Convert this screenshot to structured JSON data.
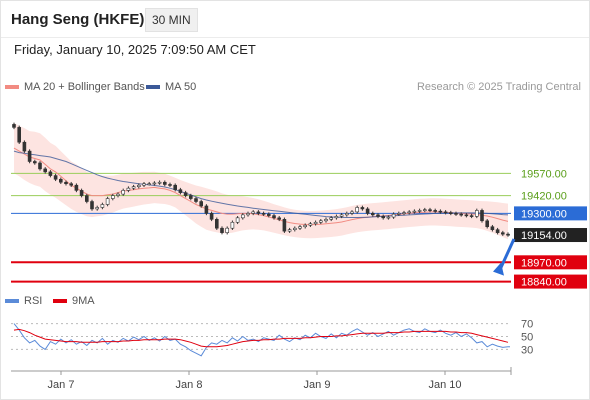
{
  "header": {
    "title": "Hang Seng (HKFE)",
    "timeframe": "30 MIN",
    "datetime": "Friday, January 10, 2025 7:09:50 AM CET"
  },
  "colors": {
    "ma20": "#f28b82",
    "ma50": "#3b5998",
    "band_fill": "#fde4e1",
    "resistance": "#9acd5a",
    "resistance_text": "#5a9e1a",
    "pivot": "#2b6cd6",
    "support": "#e0000f",
    "last": "#222222",
    "rsi": "#5b8bd8",
    "rsi_ma": "#e0000f",
    "arrow": "#2b6cd6"
  },
  "chart_data": [
    {
      "type": "line",
      "subtype": "candlestick",
      "legend": [
        {
          "name": "MA 20 + Bollinger Bands",
          "color": "#f28b82"
        },
        {
          "name": "MA 50",
          "color": "#3b5998"
        }
      ],
      "attribution": "Research © 2025 Trading Central",
      "x_ticks": [
        "Jan 7",
        "Jan 8",
        "Jan 9",
        "Jan 10"
      ],
      "ylim": [
        18790,
        19950
      ],
      "levels": [
        {
          "label": "19570.00",
          "value": 19570,
          "kind": "resistance"
        },
        {
          "label": "19420.00",
          "value": 19420,
          "kind": "resistance"
        },
        {
          "label": "19300.00",
          "value": 19300,
          "kind": "pivot"
        },
        {
          "label": "19154.00",
          "value": 19154,
          "kind": "last"
        },
        {
          "label": "18970.00",
          "value": 18970,
          "kind": "support"
        },
        {
          "label": "18840.00",
          "value": 18840,
          "kind": "support"
        }
      ],
      "close": [
        19880,
        19780,
        19720,
        19650,
        19640,
        19600,
        19580,
        19555,
        19530,
        19510,
        19500,
        19490,
        19455,
        19420,
        19380,
        19330,
        19340,
        19360,
        19400,
        19420,
        19430,
        19455,
        19470,
        19480,
        19490,
        19500,
        19500,
        19505,
        19510,
        19495,
        19490,
        19460,
        19440,
        19420,
        19400,
        19380,
        19350,
        19300,
        19260,
        19200,
        19170,
        19200,
        19240,
        19270,
        19290,
        19300,
        19310,
        19300,
        19295,
        19285,
        19270,
        19260,
        19180,
        19190,
        19200,
        19210,
        19220,
        19230,
        19240,
        19250,
        19260,
        19270,
        19280,
        19290,
        19300,
        19310,
        19340,
        19330,
        19300,
        19290,
        19280,
        19270,
        19275,
        19295,
        19300,
        19305,
        19310,
        19315,
        19320,
        19325,
        19320,
        19315,
        19310,
        19305,
        19300,
        19295,
        19290,
        19285,
        19280,
        19320,
        19250,
        19210,
        19190,
        19170,
        19160,
        19154
      ],
      "ma20": [
        19740,
        19720,
        19700,
        19680,
        19670,
        19660,
        19630,
        19600,
        19580,
        19550,
        19520,
        19490,
        19470,
        19450,
        19430,
        19420,
        19420,
        19420,
        19425,
        19430,
        19440,
        19450,
        19455,
        19460,
        19465,
        19470,
        19472,
        19475,
        19470,
        19465,
        19455,
        19440,
        19420,
        19400,
        19380,
        19360,
        19345,
        19330,
        19320,
        19310,
        19300,
        19295,
        19295,
        19298,
        19300,
        19300,
        19298,
        19292,
        19285,
        19276,
        19266,
        19256,
        19246,
        19238,
        19232,
        19228,
        19225,
        19224,
        19225,
        19227,
        19230,
        19233,
        19237,
        19242,
        19250,
        19258,
        19265,
        19270,
        19274,
        19277,
        19280,
        19283,
        19286,
        19290,
        19293,
        19297,
        19300,
        19303,
        19306,
        19308,
        19310,
        19310,
        19309,
        19307,
        19305,
        19302,
        19300,
        19298,
        19296,
        19293,
        19288,
        19282,
        19274,
        19265,
        19255,
        19246
      ],
      "ma50": [
        19720,
        19710,
        19705,
        19700,
        19695,
        19690,
        19685,
        19680,
        19670,
        19660,
        19650,
        19635,
        19620,
        19605,
        19590,
        19575,
        19560,
        19548,
        19538,
        19530,
        19522,
        19515,
        19510,
        19505,
        19500,
        19496,
        19492,
        19488,
        19484,
        19478,
        19470,
        19460,
        19448,
        19436,
        19424,
        19412,
        19400,
        19390,
        19382,
        19375,
        19368,
        19362,
        19356,
        19350,
        19345,
        19340,
        19335,
        19330,
        19326,
        19322,
        19318,
        19314,
        19310,
        19306,
        19302,
        19298,
        19294,
        19290,
        19286,
        19282,
        19278,
        19276,
        19274,
        19273,
        19272,
        19272,
        19272,
        19273,
        19274,
        19276,
        19278,
        19280,
        19282,
        19284,
        19286,
        19288,
        19290,
        19292,
        19294,
        19296,
        19298,
        19300,
        19301,
        19302,
        19303,
        19303,
        19303,
        19303,
        19303,
        19303,
        19302,
        19300,
        19298,
        19295,
        19292,
        19290
      ],
      "band_width": [
        170,
        170,
        175,
        175,
        180,
        180,
        180,
        175,
        175,
        170,
        165,
        160,
        160,
        155,
        150,
        145,
        140,
        135,
        130,
        125,
        120,
        118,
        116,
        114,
        112,
        110,
        108,
        106,
        104,
        102,
        100,
        100,
        105,
        112,
        120,
        128,
        135,
        140,
        140,
        138,
        135,
        130,
        125,
        120,
        115,
        110,
        106,
        103,
        100,
        98,
        96,
        95,
        94,
        93,
        92,
        92,
        92,
        92,
        92,
        92,
        92,
        92,
        92,
        92,
        92,
        92,
        92,
        92,
        92,
        92,
        92,
        92,
        92,
        92,
        92,
        92,
        92,
        92,
        92,
        92,
        92,
        92,
        92,
        92,
        92,
        92,
        92,
        92,
        92,
        92,
        95,
        100,
        105,
        110,
        115,
        120
      ]
    },
    {
      "type": "line",
      "legend": [
        {
          "name": "RSI",
          "color": "#5b8bd8"
        },
        {
          "name": "9MA",
          "color": "#e0000f"
        }
      ],
      "ylim": [
        15,
        85
      ],
      "y_ticks": [
        70,
        50,
        30
      ],
      "rsi": [
        70,
        60,
        48,
        40,
        44,
        35,
        30,
        42,
        38,
        46,
        40,
        45,
        38,
        42,
        36,
        44,
        40,
        47,
        38,
        44,
        41,
        47,
        43,
        49,
        45,
        50,
        44,
        48,
        43,
        50,
        44,
        46,
        38,
        34,
        28,
        24,
        20,
        33,
        40,
        38,
        44,
        40,
        48,
        43,
        50,
        44,
        46,
        42,
        48,
        46,
        44,
        52,
        46,
        42,
        48,
        45,
        52,
        48,
        55,
        50,
        47,
        54,
        48,
        55,
        52,
        58,
        62,
        57,
        52,
        56,
        50,
        54,
        58,
        52,
        56,
        60,
        62,
        58,
        56,
        62,
        58,
        56,
        60,
        55,
        52,
        56,
        50,
        54,
        48,
        40,
        42,
        34,
        38,
        35,
        33,
        34
      ],
      "rsi_ma": [
        60,
        61,
        59,
        56,
        52,
        49,
        46,
        45,
        44,
        43,
        42,
        42,
        42,
        41,
        41,
        41,
        41,
        42,
        42,
        42,
        42,
        43,
        43,
        44,
        44,
        45,
        45,
        45,
        45,
        46,
        46,
        46,
        45,
        43,
        41,
        38,
        35,
        34,
        34,
        34,
        35,
        36,
        38,
        40,
        42,
        43,
        44,
        44,
        45,
        45,
        46,
        46,
        47,
        47,
        47,
        47,
        48,
        48,
        49,
        50,
        50,
        50,
        51,
        51,
        52,
        53,
        54,
        55,
        55,
        55,
        55,
        55,
        56,
        56,
        56,
        57,
        57,
        58,
        58,
        58,
        58,
        58,
        58,
        58,
        57,
        57,
        56,
        56,
        55,
        53,
        51,
        49,
        47,
        45,
        43,
        41
      ]
    }
  ]
}
